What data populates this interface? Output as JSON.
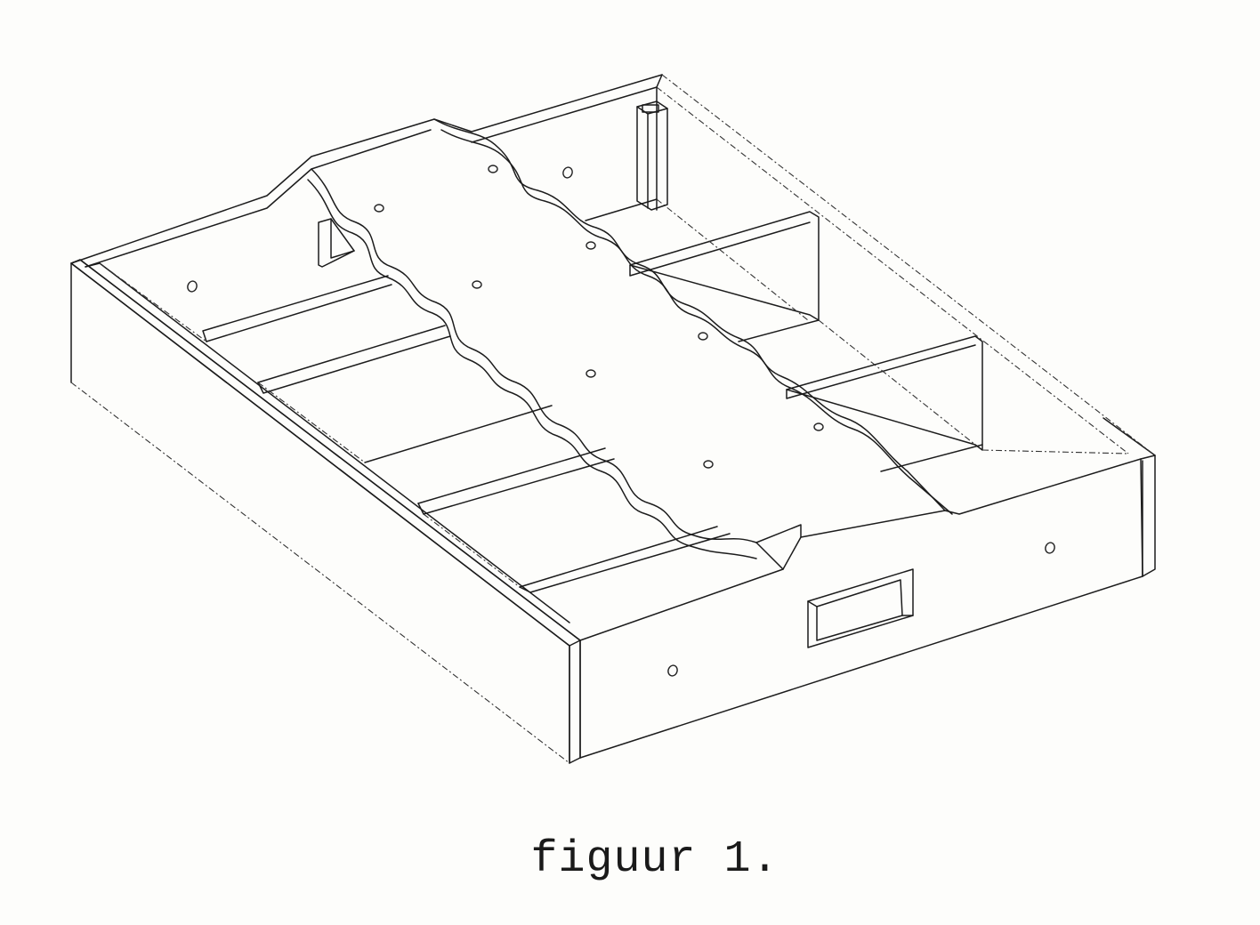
{
  "caption": "figuur 1."
}
